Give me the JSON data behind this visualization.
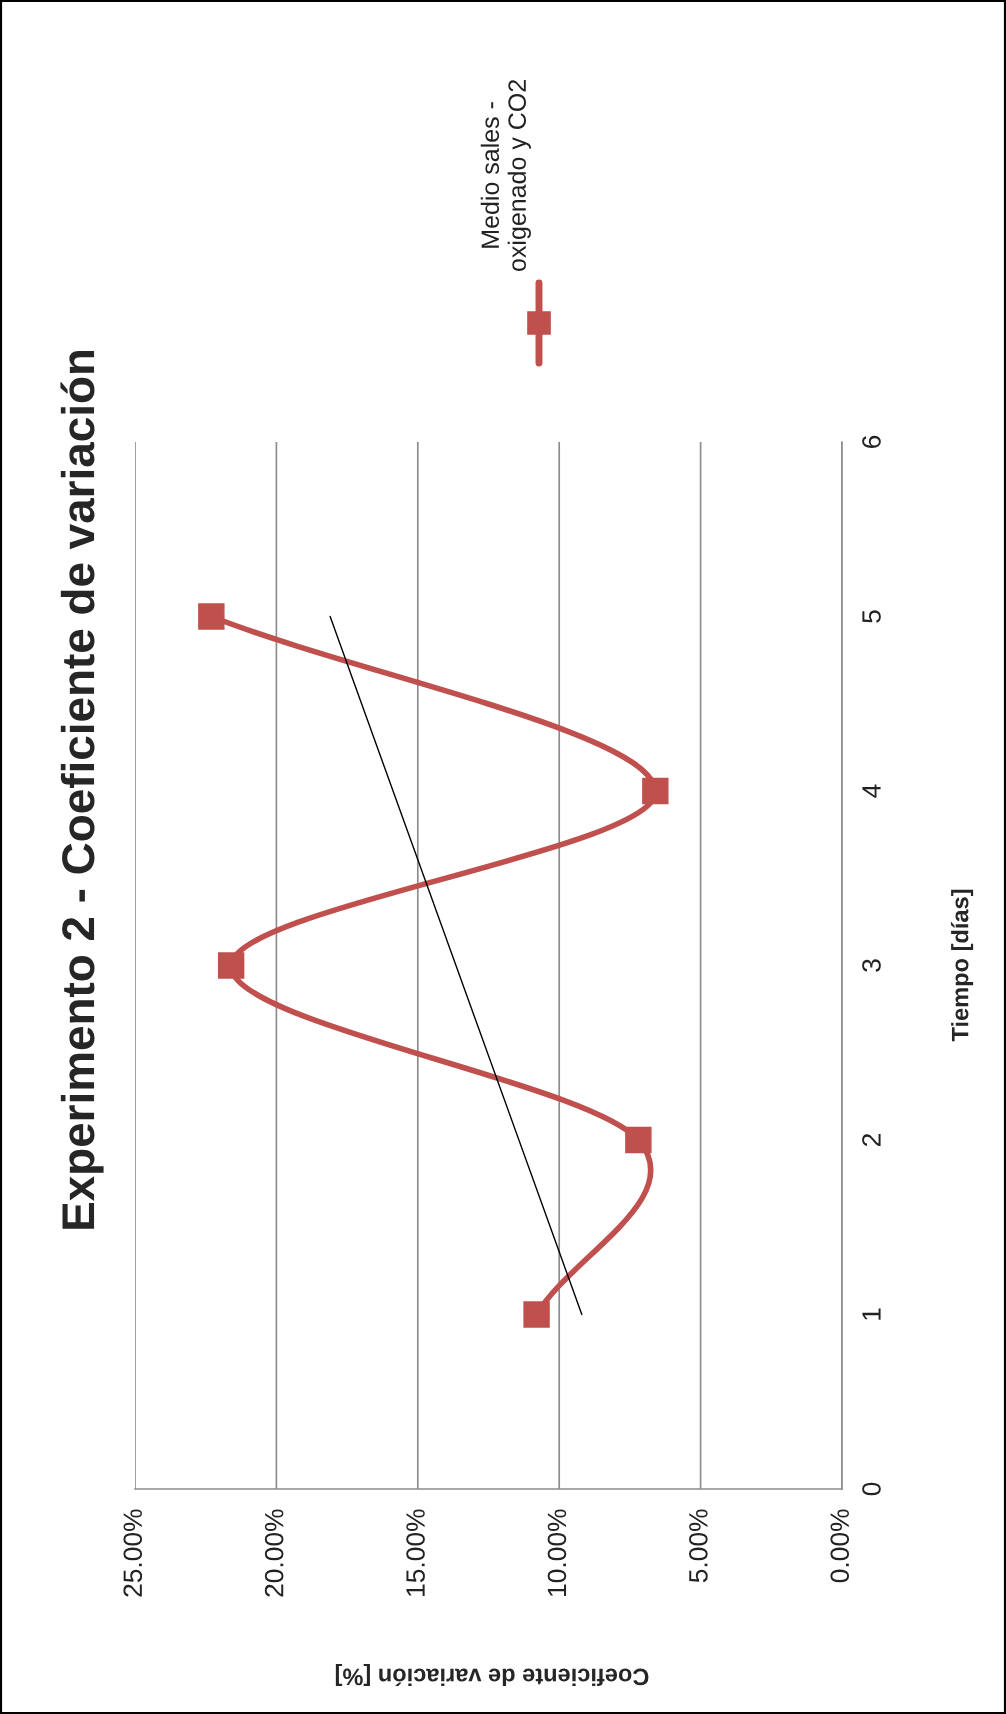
{
  "chart_data": {
    "type": "line",
    "title": "Experimento 2 - Coeficiente de variación",
    "xlabel": "Coeficiente de variación [%]",
    "ylabel": "Tiempo [días]",
    "x": [
      10.8,
      7.2,
      21.6,
      6.6,
      22.3
    ],
    "series": [
      {
        "name": "Medio sales - oxigenado y CO2",
        "color": "#c0504d",
        "values": [
          1,
          2,
          3,
          4,
          5
        ],
        "marker": "square"
      },
      {
        "type": "line",
        "color": "#000000",
        "x": [
          9.2,
          18.1
        ],
        "values": [
          1,
          5
        ],
        "marker": "none"
      }
    ],
    "xlim": [
      25,
      0
    ],
    "xticks": [
      {
        "value": 0,
        "label": "0.00%"
      },
      {
        "value": 5,
        "label": "5.00%"
      },
      {
        "value": 10,
        "label": "10.00%"
      },
      {
        "value": 15,
        "label": "15.00%"
      },
      {
        "value": 20,
        "label": "20.00%"
      },
      {
        "value": 25,
        "label": "25.00%"
      }
    ],
    "ylim": [
      0,
      6
    ],
    "yticks": [
      0,
      1,
      2,
      3,
      4,
      5,
      6
    ],
    "grid": "x",
    "legend": "top"
  }
}
